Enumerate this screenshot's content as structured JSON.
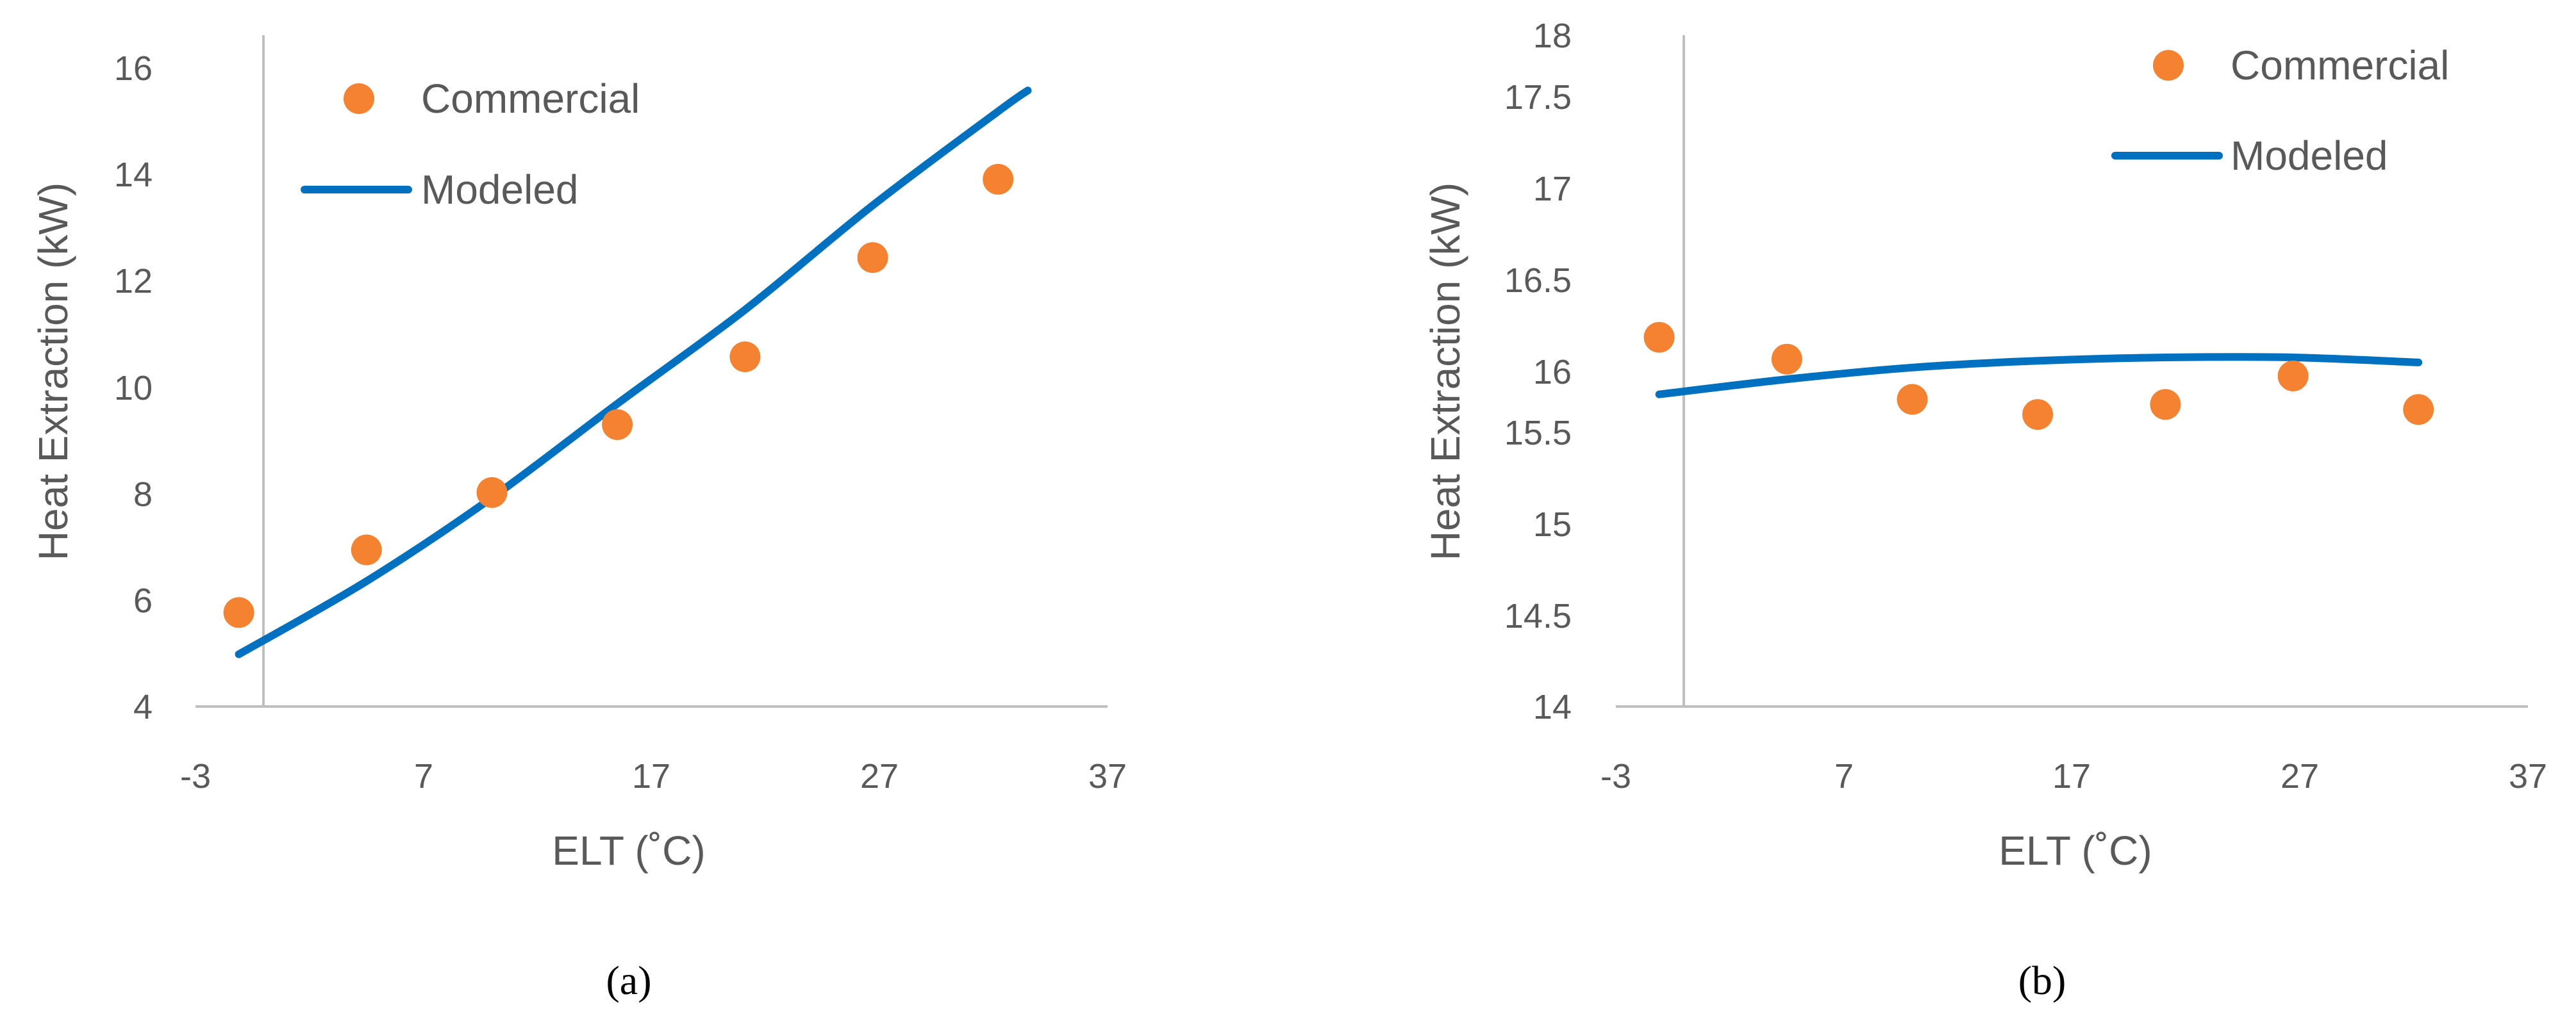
{
  "colors": {
    "commercial": "#F58231",
    "modeled": "#0070C0",
    "axis": "#BFBFBF",
    "text": "#595959"
  },
  "chart_data": [
    {
      "type": "scatter",
      "caption": "(a)",
      "xlabel": "ELT (˚C)",
      "ylabel": "Heat Extraction (kW)",
      "xlim": [
        -3,
        37
      ],
      "ylim": [
        4,
        16.6
      ],
      "x_ticks": [
        -3,
        7,
        17,
        27,
        37
      ],
      "y_ticks": [
        4,
        6,
        8,
        10,
        12,
        14,
        16
      ],
      "y_axis_at_x": 0,
      "grid": false,
      "legend": "top-left",
      "series": [
        {
          "name": "Commercial",
          "kind": "scatter",
          "x": [
            -1.1,
            4.5,
            10,
            15.5,
            21.1,
            26.7,
            32.2
          ],
          "y": [
            5.8,
            7.0,
            8.1,
            9.4,
            10.7,
            12.6,
            14.1
          ]
        },
        {
          "name": "Modeled",
          "kind": "line",
          "x": [
            -1.1,
            4.5,
            10,
            15.5,
            21.1,
            26.7,
            32.2,
            33.5
          ],
          "y": [
            5.0,
            6.4,
            8.0,
            9.8,
            11.6,
            13.6,
            15.4,
            15.8
          ]
        }
      ]
    },
    {
      "type": "scatter",
      "caption": "(b)",
      "xlabel": "ELT (˚C)",
      "ylabel": "Heat Extraction (kW)",
      "xlim": [
        -3,
        37
      ],
      "ylim": [
        14,
        18
      ],
      "x_ticks": [
        -3,
        7,
        17,
        27,
        37
      ],
      "y_ticks": [
        14,
        14.5,
        15,
        15.5,
        16,
        16.5,
        17,
        17.5,
        18
      ],
      "y_axis_at_x": 0,
      "grid": false,
      "legend": "top-right",
      "series": [
        {
          "name": "Commercial",
          "kind": "scatter",
          "x": [
            -1.1,
            4.5,
            10,
            15.5,
            21.1,
            26.7,
            32.2
          ],
          "y": [
            16.2,
            16.07,
            15.83,
            15.74,
            15.8,
            15.97,
            15.77
          ]
        },
        {
          "name": "Modeled",
          "kind": "line",
          "x": [
            -1.1,
            4.5,
            10,
            15.5,
            21.1,
            26.7,
            32.2
          ],
          "y": [
            15.86,
            15.95,
            16.02,
            16.06,
            16.08,
            16.08,
            16.05
          ]
        }
      ]
    }
  ]
}
